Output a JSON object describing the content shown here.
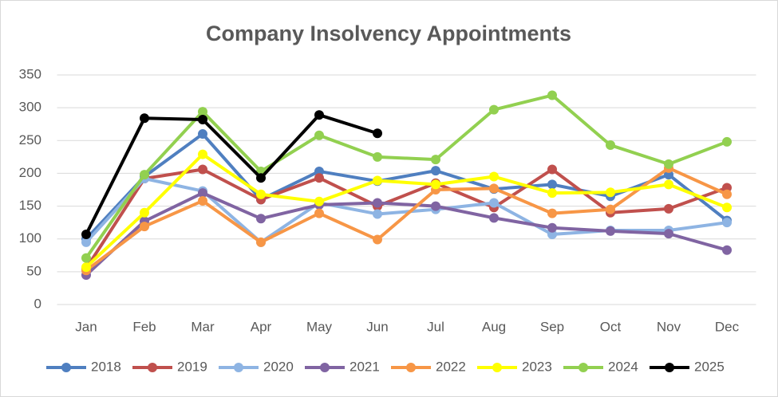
{
  "chart_data": {
    "type": "line",
    "title": "Company Insolvency Appointments",
    "categories": [
      "Jan",
      "Feb",
      "Mar",
      "Apr",
      "May",
      "Jun",
      "Jul",
      "Aug",
      "Sep",
      "Oct",
      "Nov",
      "Dec"
    ],
    "ylim": [
      0,
      350
    ],
    "yticks": [
      0,
      50,
      100,
      150,
      200,
      250,
      300,
      350
    ],
    "grid": true,
    "legend": "bottom",
    "series": [
      {
        "name": "2018",
        "color": "#4f7fc0",
        "values": [
          100,
          195,
          260,
          160,
          203,
          188,
          204,
          176,
          183,
          165,
          198,
          128
        ]
      },
      {
        "name": "2019",
        "color": "#c0504d",
        "values": [
          55,
          192,
          206,
          160,
          193,
          150,
          185,
          148,
          206,
          140,
          146,
          178
        ]
      },
      {
        "name": "2020",
        "color": "#8eb4e3",
        "values": [
          95,
          192,
          173,
          95,
          155,
          138,
          145,
          155,
          107,
          113,
          113,
          125
        ]
      },
      {
        "name": "2021",
        "color": "#8064a2",
        "values": [
          45,
          127,
          170,
          131,
          152,
          155,
          150,
          132,
          117,
          112,
          108,
          83
        ]
      },
      {
        "name": "2022",
        "color": "#f79646",
        "values": [
          52,
          119,
          158,
          95,
          139,
          99,
          175,
          177,
          139,
          145,
          208,
          168
        ]
      },
      {
        "name": "2023",
        "color": "#ffff00",
        "values": [
          57,
          140,
          229,
          168,
          157,
          189,
          183,
          195,
          170,
          171,
          183,
          148
        ]
      },
      {
        "name": "2024",
        "color": "#92d050",
        "values": [
          71,
          198,
          294,
          203,
          258,
          225,
          221,
          297,
          319,
          243,
          214,
          248
        ]
      },
      {
        "name": "2025",
        "color": "#000000",
        "values": [
          107,
          284,
          282,
          193,
          289,
          261,
          null,
          null,
          null,
          null,
          null,
          null
        ]
      }
    ]
  }
}
